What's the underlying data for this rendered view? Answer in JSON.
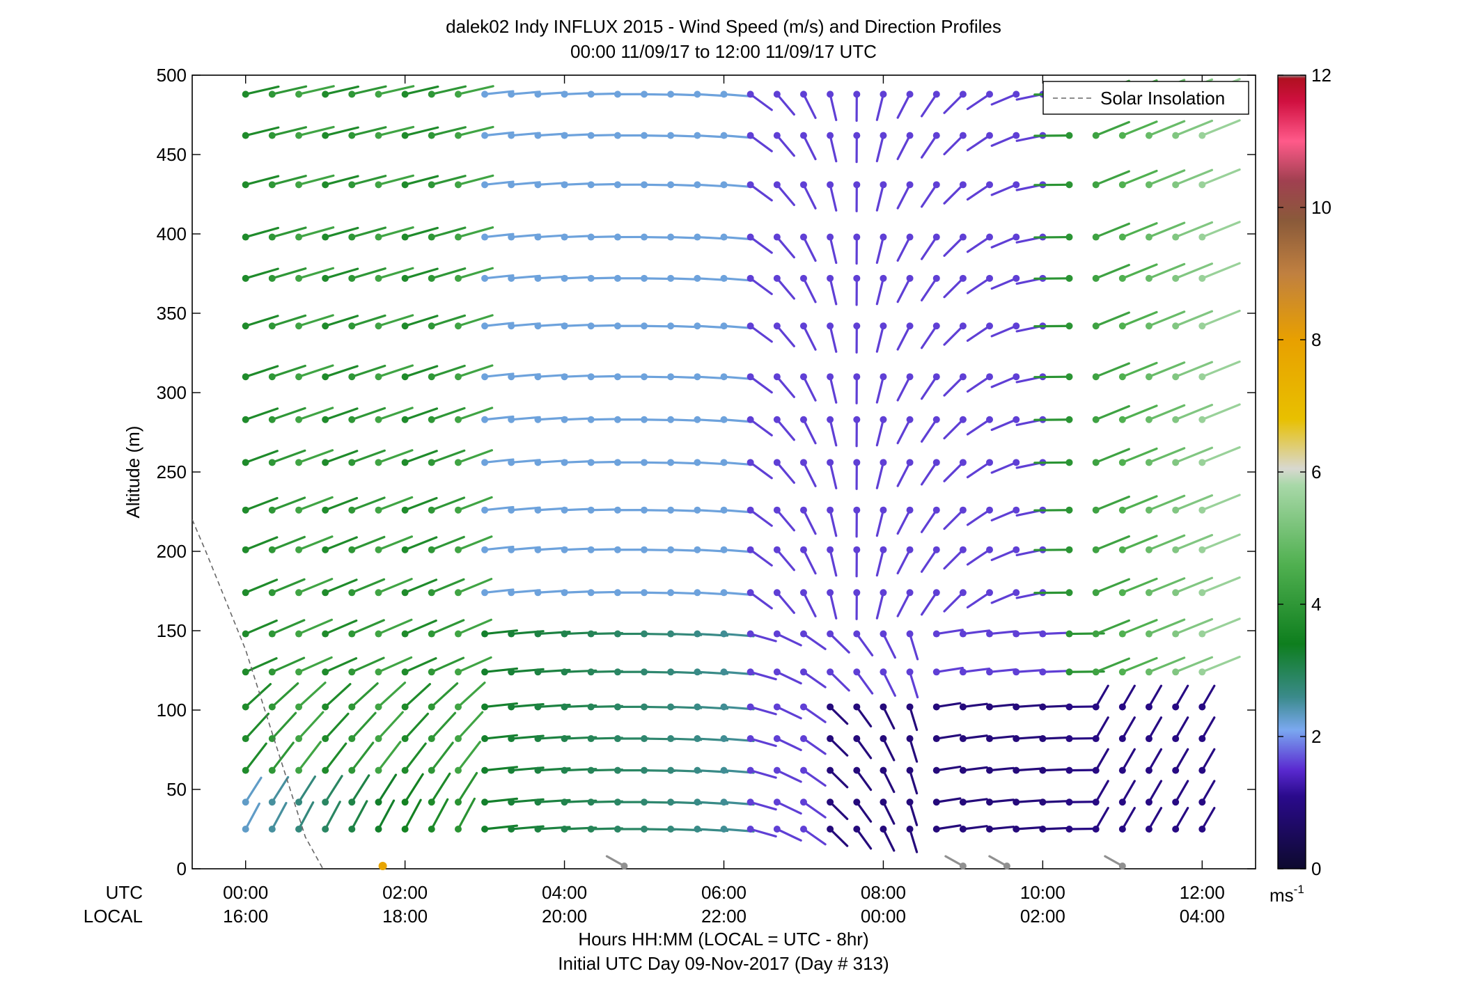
{
  "chart_data": {
    "type": "wind-barb-profile",
    "title": "dalek02 Indy INFLUX 2015 - Wind Speed (m/s) and Direction Profiles",
    "subtitle": "00:00 11/09/17 to 12:00 11/09/17  UTC",
    "ylabel": "Altitude (m)",
    "xlabel": "Hours HH:MM  (LOCAL = UTC - 8hr)",
    "footer": "Initial UTC Day 09-Nov-2017 (Day # 313)",
    "x_row_labels": [
      "UTC",
      "LOCAL"
    ],
    "x_ticks": [
      {
        "hour": 0,
        "utc": "00:00",
        "local": "16:00"
      },
      {
        "hour": 2,
        "utc": "02:00",
        "local": "18:00"
      },
      {
        "hour": 4,
        "utc": "04:00",
        "local": "20:00"
      },
      {
        "hour": 6,
        "utc": "06:00",
        "local": "22:00"
      },
      {
        "hour": 8,
        "utc": "08:00",
        "local": "00:00"
      },
      {
        "hour": 10,
        "utc": "10:00",
        "local": "02:00"
      },
      {
        "hour": 12,
        "utc": "12:00",
        "local": "04:00"
      }
    ],
    "xlim": [
      -0.67,
      12.67
    ],
    "ylim": [
      0,
      500
    ],
    "y_ticks": [
      "0",
      "50",
      "100",
      "150",
      "200",
      "250",
      "300",
      "350",
      "400",
      "450",
      "500"
    ],
    "altitudes": [
      25,
      42,
      62,
      82,
      102,
      124,
      148,
      174,
      201,
      226,
      256,
      283,
      310,
      342,
      372,
      398,
      431,
      462,
      488
    ],
    "times_hours": [
      0,
      0.333,
      0.667,
      1,
      1.333,
      1.667,
      2,
      2.333,
      2.667,
      3,
      3.333,
      3.667,
      4,
      4.333,
      4.667,
      5,
      5.333,
      5.667,
      6,
      6.333,
      6.667,
      7,
      7.333,
      7.667,
      8,
      8.333,
      8.667,
      9,
      9.333,
      9.667,
      10,
      10.333,
      10.667,
      11,
      11.333,
      11.667,
      12
    ],
    "legend": {
      "label": "Solar Insolation",
      "placement": "top-right",
      "line_style": "dashed"
    },
    "solar_insolation": [
      {
        "x": -0.67,
        "y": 220
      },
      {
        "x": -0.5,
        "y": 200
      },
      {
        "x": 0,
        "y": 138
      },
      {
        "x": 0.4,
        "y": 75
      },
      {
        "x": 0.75,
        "y": 20
      },
      {
        "x": 0.97,
        "y": 0
      }
    ],
    "colorbar": {
      "min": 0,
      "max": 12,
      "ticks": [
        "0",
        "2",
        "4",
        "6",
        "8",
        "10",
        "12"
      ],
      "unit": "ms",
      "unit_exponent": "-1",
      "colors": [
        "#0d0a2e",
        "#2a0a8c",
        "#5a2ad0",
        "#7aa8f0",
        "#3a8a8a",
        "#0e7e1e",
        "#50b050",
        "#a8d8a8",
        "#d8d8d0",
        "#e8c000",
        "#e8a000",
        "#c08040",
        "#8a5a3a",
        "#a04050",
        "#ff5a8a",
        "#d01040",
        "#b01020",
        "#909090"
      ],
      "color_stops": [
        0,
        1.1,
        1.5,
        2.1,
        2.6,
        3.4,
        4.6,
        5.8,
        6.05,
        6.8,
        8,
        9,
        9.8,
        10.4,
        11,
        11.6,
        11.95,
        12
      ]
    },
    "speed_field_description_bands": [
      {
        "hours": [
          0,
          3
        ],
        "alt": [
          0,
          250
        ],
        "speed_ms": 3.8
      },
      {
        "hours": [
          3,
          6.5
        ],
        "alt": [
          180,
          500
        ],
        "speed_ms": 2.3
      },
      {
        "hours": [
          6.5,
          10.5
        ],
        "alt": [
          0,
          500
        ],
        "speed_ms": 1.4
      },
      {
        "hours": [
          9,
          12
        ],
        "alt": [
          250,
          500
        ],
        "speed_ms": 4.6
      }
    ],
    "ground_level_markers": [
      {
        "hour": 1.72,
        "speed_ms": 7.8
      },
      {
        "hour": 4.75,
        "speed_ms": 12
      },
      {
        "hour": 9.0,
        "speed_ms": 12
      },
      {
        "hour": 9.55,
        "speed_ms": 12
      },
      {
        "hour": 11.0,
        "speed_ms": 12
      }
    ]
  }
}
